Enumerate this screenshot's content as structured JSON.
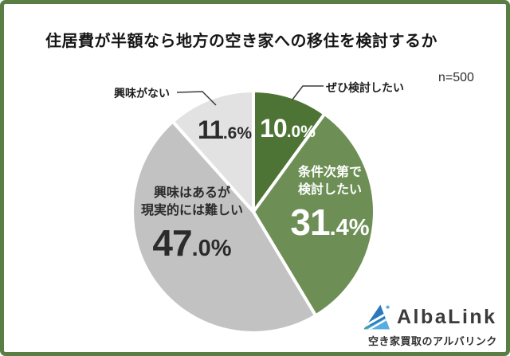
{
  "title": "住居費が半額なら地方の空き家への移住を検討するか",
  "sample_size_label": "n=500",
  "chart_data": {
    "type": "pie",
    "title": "住居費が半額なら地方の空き家への移住を検討するか",
    "n": 500,
    "unit": "%",
    "start_angle_deg": 0,
    "direction": "clockwise",
    "legend_position": "labels-on-slices",
    "segments": [
      {
        "label": "ぜひ検討したい",
        "value": 10.0,
        "pct_int": "10",
        "pct_dec": ".0%",
        "color": "#4d7434",
        "text_color": "#ffffff",
        "label_placement": "callout-right"
      },
      {
        "label": "条件次第で検討したい",
        "name_line1": "条件次第で",
        "name_line2": "検討したい",
        "value": 31.4,
        "pct_int": "31",
        "pct_dec": ".4%",
        "color": "#6d8f55",
        "text_color": "#ffffff",
        "label_placement": "inside"
      },
      {
        "label": "興味はあるが現実的には難しい",
        "name_line1": "興味はあるが",
        "name_line2": "現実的には難しい",
        "value": 47.0,
        "pct_int": "47",
        "pct_dec": ".0%",
        "color": "#c2c2c2",
        "text_color": "#2b2b2b",
        "label_placement": "inside"
      },
      {
        "label": "興味がない",
        "value": 11.6,
        "pct_int": "11",
        "pct_dec": ".6%",
        "color": "#e2e2e2",
        "text_color": "#2b2b2b",
        "label_placement": "callout-left"
      }
    ]
  },
  "logo": {
    "brand": "AlbaLink",
    "tagline": "空き家買取のアルバリンク"
  },
  "colors": {
    "frame_border": "#5a7d44",
    "background": "#ffffff",
    "slice_gap": "#ffffff",
    "callout_line": "#3c3c3c",
    "logo_blue_dark": "#2a79bd",
    "logo_blue_light": "#55aede"
  }
}
